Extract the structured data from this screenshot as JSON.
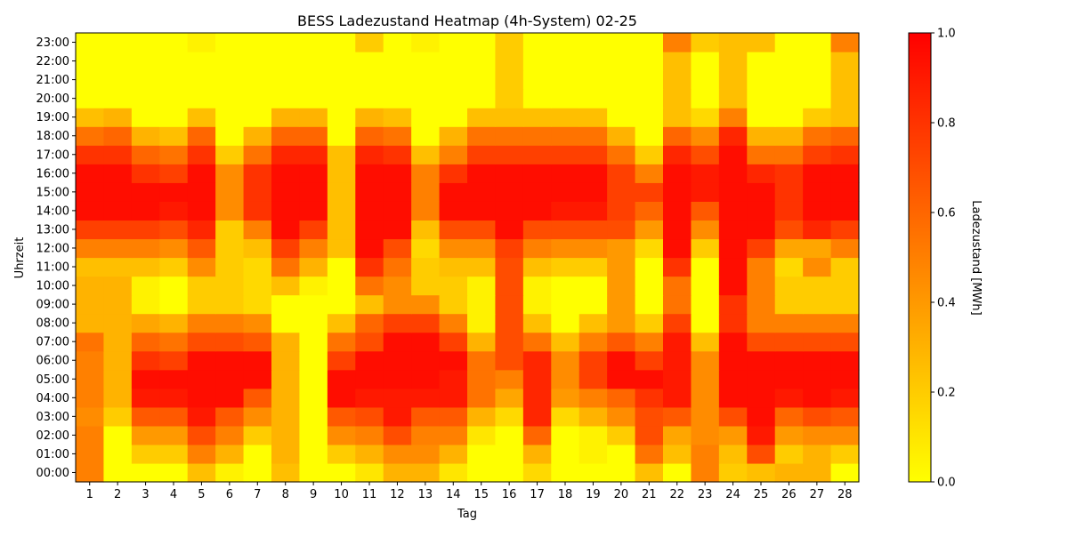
{
  "chart_data": {
    "type": "heatmap",
    "title": "BESS Ladezustand Heatmap (4h-System) 02-25",
    "xlabel": "Tag",
    "ylabel": "Uhrzeit",
    "x": [
      1,
      2,
      3,
      4,
      5,
      6,
      7,
      8,
      9,
      10,
      11,
      12,
      13,
      14,
      15,
      16,
      17,
      18,
      19,
      20,
      21,
      22,
      23,
      24,
      25,
      26,
      27,
      28
    ],
    "y": [
      "00:00",
      "01:00",
      "02:00",
      "03:00",
      "04:00",
      "05:00",
      "06:00",
      "07:00",
      "08:00",
      "09:00",
      "10:00",
      "11:00",
      "12:00",
      "13:00",
      "14:00",
      "15:00",
      "16:00",
      "17:00",
      "18:00",
      "19:00",
      "20:00",
      "21:00",
      "22:00",
      "23:00"
    ],
    "values": [
      [
        0.5,
        0,
        0,
        0,
        0.25,
        0.05,
        0,
        0.25,
        0,
        0,
        0.1,
        0.3,
        0.3,
        0.1,
        0,
        0,
        0.15,
        0,
        0,
        0,
        0.25,
        0,
        0.5,
        0.2,
        0.25,
        0.3,
        0.3,
        0
      ],
      [
        0.5,
        0,
        0.2,
        0.2,
        0.5,
        0.3,
        0,
        0.3,
        0,
        0.2,
        0.3,
        0.45,
        0.45,
        0.3,
        0,
        0,
        0.3,
        0,
        0.05,
        0,
        0.55,
        0.25,
        0.5,
        0.25,
        0.7,
        0.2,
        0.3,
        0.2
      ],
      [
        0.5,
        0,
        0.4,
        0.4,
        0.7,
        0.5,
        0.2,
        0.3,
        0,
        0.45,
        0.5,
        0.7,
        0.5,
        0.5,
        0.1,
        0,
        0.6,
        0,
        0.05,
        0.2,
        0.7,
        0.35,
        0.45,
        0.4,
        0.9,
        0.4,
        0.45,
        0.45
      ],
      [
        0.45,
        0.2,
        0.65,
        0.65,
        0.9,
        0.65,
        0.45,
        0.3,
        0,
        0.65,
        0.7,
        0.9,
        0.65,
        0.65,
        0.3,
        0.15,
        0.85,
        0.15,
        0.3,
        0.45,
        0.7,
        0.65,
        0.45,
        0.7,
        0.95,
        0.6,
        0.7,
        0.65
      ],
      [
        0.5,
        0.3,
        0.9,
        0.9,
        0.95,
        0.95,
        0.65,
        0.3,
        0,
        0.95,
        0.9,
        0.9,
        0.9,
        0.9,
        0.55,
        0.35,
        0.85,
        0.4,
        0.5,
        0.6,
        0.8,
        0.9,
        0.45,
        0.95,
        0.95,
        0.9,
        0.95,
        0.9
      ],
      [
        0.5,
        0.3,
        0.95,
        0.95,
        0.95,
        0.95,
        0.95,
        0.3,
        0,
        0.95,
        0.95,
        0.95,
        0.95,
        0.9,
        0.55,
        0.5,
        0.85,
        0.45,
        0.75,
        0.95,
        0.95,
        0.9,
        0.45,
        0.95,
        0.95,
        0.95,
        0.95,
        0.95
      ],
      [
        0.5,
        0.3,
        0.8,
        0.75,
        0.95,
        0.95,
        0.95,
        0.3,
        0,
        0.75,
        0.95,
        0.95,
        0.95,
        0.95,
        0.55,
        0.7,
        0.85,
        0.45,
        0.75,
        0.95,
        0.75,
        0.9,
        0.45,
        0.95,
        0.95,
        0.95,
        0.95,
        0.95
      ],
      [
        0.55,
        0.3,
        0.6,
        0.55,
        0.7,
        0.7,
        0.65,
        0.3,
        0,
        0.55,
        0.7,
        0.95,
        0.95,
        0.75,
        0.3,
        0.7,
        0.55,
        0.25,
        0.5,
        0.65,
        0.5,
        0.9,
        0.25,
        0.95,
        0.7,
        0.7,
        0.7,
        0.7
      ],
      [
        0.3,
        0.3,
        0.35,
        0.3,
        0.5,
        0.5,
        0.45,
        0,
        0,
        0.25,
        0.6,
        0.75,
        0.75,
        0.5,
        0.05,
        0.7,
        0.25,
        0,
        0.25,
        0.4,
        0.2,
        0.75,
        0,
        0.8,
        0.5,
        0.5,
        0.5,
        0.5
      ],
      [
        0.3,
        0.3,
        0.05,
        0,
        0.2,
        0.2,
        0.15,
        0,
        0,
        0,
        0.25,
        0.45,
        0.45,
        0.2,
        0.05,
        0.7,
        0.05,
        0,
        0,
        0.4,
        0,
        0.55,
        0,
        0.8,
        0.5,
        0.2,
        0.2,
        0.2
      ],
      [
        0.3,
        0.3,
        0.05,
        0,
        0.2,
        0.2,
        0.15,
        0.25,
        0.05,
        0,
        0.55,
        0.45,
        0.2,
        0.2,
        0.05,
        0.7,
        0.05,
        0,
        0,
        0.4,
        0,
        0.55,
        0,
        0.95,
        0.5,
        0.2,
        0.2,
        0.2
      ],
      [
        0.25,
        0.25,
        0.25,
        0.2,
        0.45,
        0.2,
        0.15,
        0.55,
        0.3,
        0,
        0.8,
        0.55,
        0.2,
        0.25,
        0.25,
        0.7,
        0.25,
        0.2,
        0.2,
        0.4,
        0,
        0.8,
        0,
        0.95,
        0.5,
        0.15,
        0.45,
        0.2
      ],
      [
        0.5,
        0.5,
        0.5,
        0.45,
        0.65,
        0.2,
        0.25,
        0.75,
        0.5,
        0.25,
        0.95,
        0.7,
        0.15,
        0.45,
        0.45,
        0.75,
        0.5,
        0.45,
        0.45,
        0.4,
        0.15,
        0.95,
        0.2,
        0.95,
        0.75,
        0.35,
        0.35,
        0.5
      ],
      [
        0.75,
        0.75,
        0.75,
        0.7,
        0.85,
        0.2,
        0.5,
        0.95,
        0.75,
        0.25,
        0.95,
        0.95,
        0.25,
        0.7,
        0.7,
        0.95,
        0.7,
        0.7,
        0.7,
        0.7,
        0.4,
        0.95,
        0.45,
        0.95,
        0.95,
        0.7,
        0.85,
        0.75
      ],
      [
        0.95,
        0.95,
        0.95,
        0.9,
        0.95,
        0.45,
        0.8,
        0.95,
        0.95,
        0.25,
        0.95,
        0.95,
        0.5,
        0.95,
        0.95,
        0.95,
        0.95,
        0.9,
        0.9,
        0.75,
        0.6,
        0.95,
        0.65,
        0.95,
        0.95,
        0.8,
        0.95,
        0.95
      ],
      [
        0.95,
        0.95,
        0.95,
        0.95,
        0.95,
        0.45,
        0.8,
        0.95,
        0.95,
        0.25,
        0.95,
        0.95,
        0.5,
        0.95,
        0.95,
        0.95,
        0.95,
        0.95,
        0.95,
        0.75,
        0.75,
        0.95,
        0.9,
        0.95,
        0.95,
        0.8,
        0.95,
        0.95
      ],
      [
        0.95,
        0.95,
        0.8,
        0.75,
        0.95,
        0.45,
        0.8,
        0.95,
        0.95,
        0.25,
        0.95,
        0.95,
        0.5,
        0.8,
        0.95,
        0.95,
        0.95,
        0.95,
        0.95,
        0.75,
        0.5,
        0.95,
        0.9,
        0.95,
        0.85,
        0.8,
        0.95,
        0.95
      ],
      [
        0.8,
        0.8,
        0.6,
        0.55,
        0.8,
        0.2,
        0.55,
        0.85,
        0.85,
        0.25,
        0.85,
        0.8,
        0.25,
        0.5,
        0.75,
        0.75,
        0.75,
        0.75,
        0.75,
        0.55,
        0.2,
        0.85,
        0.7,
        0.95,
        0.55,
        0.55,
        0.75,
        0.8
      ],
      [
        0.55,
        0.6,
        0.3,
        0.25,
        0.6,
        0,
        0.3,
        0.6,
        0.6,
        0,
        0.6,
        0.55,
        0,
        0.3,
        0.55,
        0.55,
        0.55,
        0.55,
        0.55,
        0.3,
        0,
        0.6,
        0.45,
        0.85,
        0.3,
        0.3,
        0.55,
        0.6
      ],
      [
        0.25,
        0.3,
        0,
        0,
        0.25,
        0,
        0,
        0.3,
        0.3,
        0,
        0.3,
        0.25,
        0,
        0,
        0.25,
        0.25,
        0.25,
        0.25,
        0.25,
        0,
        0,
        0.25,
        0.15,
        0.5,
        0,
        0,
        0.2,
        0.25
      ],
      [
        0,
        0,
        0,
        0,
        0,
        0,
        0,
        0,
        0,
        0,
        0,
        0,
        0,
        0,
        0,
        0.2,
        0,
        0,
        0,
        0,
        0,
        0.25,
        0,
        0.25,
        0,
        0,
        0,
        0.25
      ],
      [
        0,
        0,
        0,
        0,
        0,
        0,
        0,
        0,
        0,
        0,
        0,
        0,
        0,
        0,
        0,
        0.2,
        0,
        0,
        0,
        0,
        0,
        0.25,
        0,
        0.25,
        0,
        0,
        0,
        0.25
      ],
      [
        0,
        0,
        0,
        0,
        0,
        0,
        0,
        0,
        0,
        0,
        0,
        0,
        0,
        0,
        0,
        0.2,
        0,
        0,
        0,
        0,
        0,
        0.25,
        0,
        0.25,
        0,
        0,
        0,
        0.25
      ],
      [
        0,
        0,
        0,
        0,
        0.05,
        0,
        0,
        0,
        0,
        0,
        0.2,
        0,
        0.05,
        0,
        0,
        0.2,
        0,
        0,
        0,
        0,
        0,
        0.5,
        0.2,
        0.25,
        0.25,
        0,
        0,
        0.5
      ]
    ],
    "colorbar": {
      "label": "Ladezustand [MWh]",
      "min": 0.0,
      "max": 1.0,
      "ticks": [
        "0.0",
        "0.2",
        "0.4",
        "0.6",
        "0.8",
        "1.0"
      ],
      "colors": [
        "#ffff00",
        "#ff0000"
      ],
      "colormap": "autumn_r"
    },
    "grid": false
  }
}
